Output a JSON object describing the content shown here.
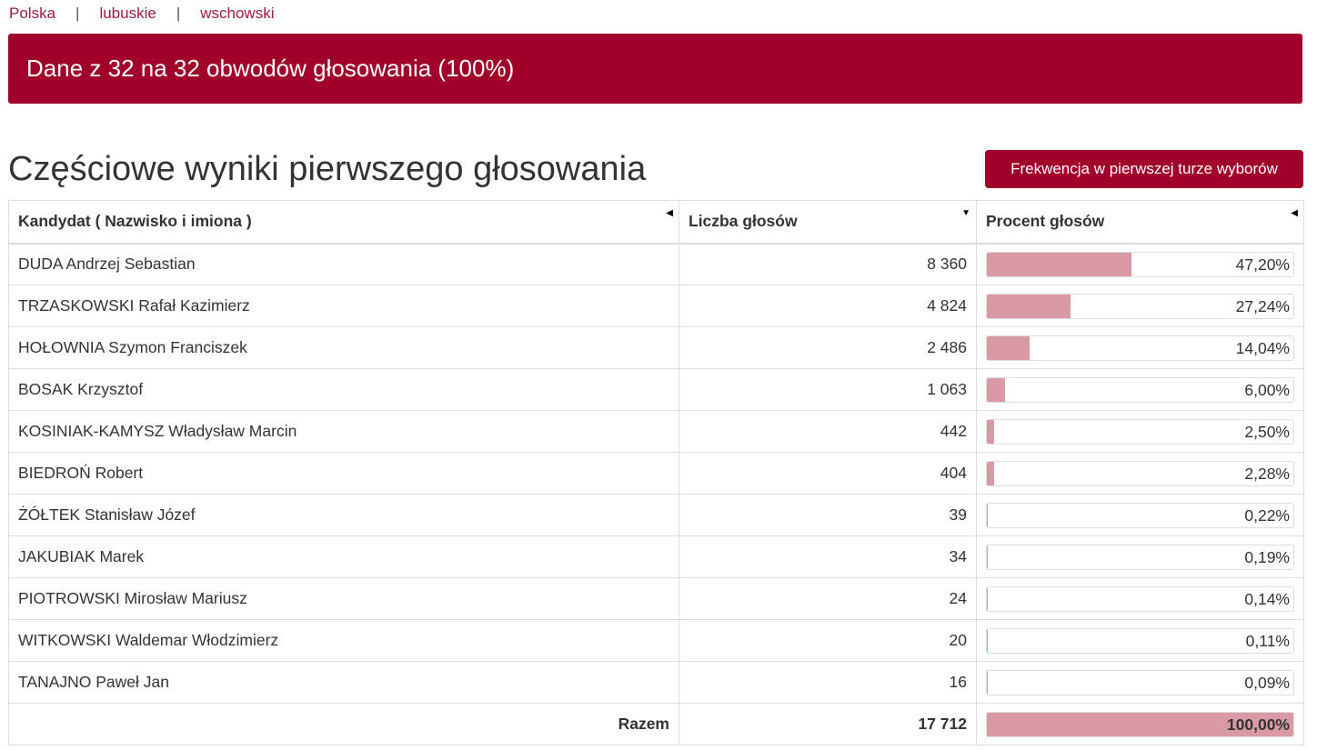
{
  "breadcrumb": {
    "items": [
      "Polska",
      "lubuskie",
      "wschowski"
    ],
    "separator": "|"
  },
  "banner": {
    "text": "Dane z 32 na 32 obwodów głosowania (100%)"
  },
  "section": {
    "title": "Częściowe wyniki pierwszego głosowania",
    "turnout_button": "Frekwencja w pierwszej turze wyborów"
  },
  "table": {
    "headers": [
      "Kandydat ( Nazwisko i imiona )",
      "Liczba głosów",
      "Procent głosów"
    ],
    "sort_icons": [
      "sort-left-icon",
      "sort-down-icon",
      "sort-left-icon"
    ],
    "rows": [
      {
        "name": "DUDA Andrzej Sebastian",
        "votes": "8 360",
        "percent_label": "47,20%",
        "percent": 47.2
      },
      {
        "name": "TRZASKOWSKI Rafał Kazimierz",
        "votes": "4 824",
        "percent_label": "27,24%",
        "percent": 27.24
      },
      {
        "name": "HOŁOWNIA Szymon Franciszek",
        "votes": "2 486",
        "percent_label": "14,04%",
        "percent": 14.04
      },
      {
        "name": "BOSAK Krzysztof",
        "votes": "1 063",
        "percent_label": "6,00%",
        "percent": 6.0
      },
      {
        "name": "KOSINIAK-KAMYSZ Władysław Marcin",
        "votes": "442",
        "percent_label": "2,50%",
        "percent": 2.5
      },
      {
        "name": "BIEDROŃ Robert",
        "votes": "404",
        "percent_label": "2,28%",
        "percent": 2.28
      },
      {
        "name": "ŻÓŁTEK Stanisław Józef",
        "votes": "39",
        "percent_label": "0,22%",
        "percent": 0.22
      },
      {
        "name": "JAKUBIAK Marek",
        "votes": "34",
        "percent_label": "0,19%",
        "percent": 0.19
      },
      {
        "name": "PIOTROWSKI Mirosław Mariusz",
        "votes": "24",
        "percent_label": "0,14%",
        "percent": 0.14
      },
      {
        "name": "WITKOWSKI Waldemar Włodzimierz",
        "votes": "20",
        "percent_label": "0,11%",
        "percent": 0.11
      },
      {
        "name": "TANAJNO Paweł Jan",
        "votes": "16",
        "percent_label": "0,09%",
        "percent": 0.09
      }
    ],
    "total": {
      "label": "Razem",
      "votes": "17 712",
      "percent_label": "100,00%",
      "percent": 100
    }
  },
  "colors": {
    "brand": "#a0002a",
    "bar": "#d99aa6",
    "link": "#9c1b3c"
  }
}
